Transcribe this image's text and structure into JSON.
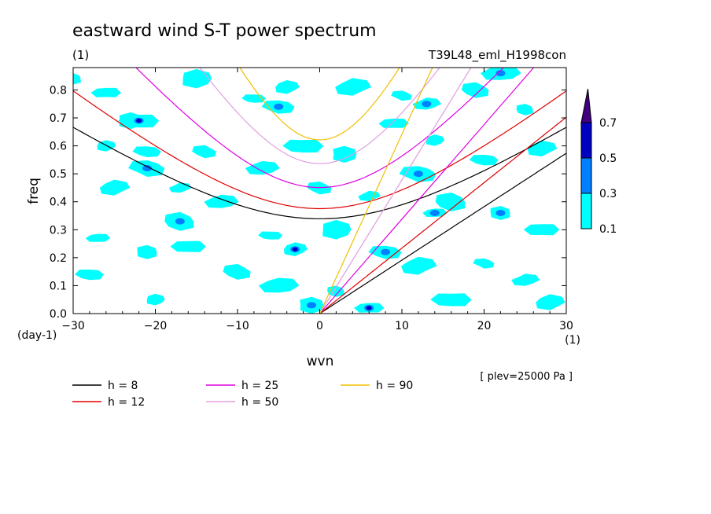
{
  "chart_data": {
    "type": "heatmap",
    "title": "eastward wind S-T power spectrum",
    "subtitle_left": "(1)",
    "subtitle_right": "T39L48_eml_H1998con",
    "xlabel": "wvn",
    "ylabel": "freq",
    "x_unit": "(1)",
    "y_unit": "(day-1)",
    "footnote": "[ plev=25000 Pa ]",
    "xlim": [
      -30,
      30
    ],
    "ylim": [
      0,
      0.88
    ],
    "xticks": [
      -30,
      -20,
      -10,
      0,
      10,
      20,
      30
    ],
    "yticks": [
      0.0,
      0.1,
      0.2,
      0.3,
      0.4,
      0.5,
      0.6,
      0.7,
      0.8
    ],
    "colorbar": {
      "levels": [
        "0.1",
        "0.3",
        "0.5",
        "0.7"
      ],
      "colors": [
        "#00ffff",
        "#0080ff",
        "#0000c0",
        "#400080"
      ]
    },
    "contour_patches": [
      {
        "x": -30,
        "y": 0.84,
        "level": 1
      },
      {
        "x": -26,
        "y": 0.79,
        "level": 1
      },
      {
        "x": -23,
        "y": 0.69,
        "level": 2
      },
      {
        "x": -22,
        "y": 0.69,
        "level": 3
      },
      {
        "x": -26,
        "y": 0.6,
        "level": 1
      },
      {
        "x": -21,
        "y": 0.58,
        "level": 1
      },
      {
        "x": -25,
        "y": 0.45,
        "level": 1
      },
      {
        "x": -21,
        "y": 0.52,
        "level": 2
      },
      {
        "x": -17,
        "y": 0.45,
        "level": 1
      },
      {
        "x": -14,
        "y": 0.58,
        "level": 1
      },
      {
        "x": -12,
        "y": 0.4,
        "level": 1
      },
      {
        "x": -17,
        "y": 0.33,
        "level": 2
      },
      {
        "x": -27,
        "y": 0.27,
        "level": 1
      },
      {
        "x": -21,
        "y": 0.22,
        "level": 1
      },
      {
        "x": -16,
        "y": 0.24,
        "level": 1
      },
      {
        "x": -15,
        "y": 0.84,
        "level": 1
      },
      {
        "x": -8,
        "y": 0.77,
        "level": 1
      },
      {
        "x": -4,
        "y": 0.81,
        "level": 1
      },
      {
        "x": -5,
        "y": 0.74,
        "level": 2
      },
      {
        "x": 4,
        "y": 0.81,
        "level": 1
      },
      {
        "x": 10,
        "y": 0.78,
        "level": 1
      },
      {
        "x": 13,
        "y": 0.75,
        "level": 2
      },
      {
        "x": 19,
        "y": 0.8,
        "level": 1
      },
      {
        "x": 22,
        "y": 0.86,
        "level": 2
      },
      {
        "x": 25,
        "y": 0.73,
        "level": 1
      },
      {
        "x": 9,
        "y": 0.68,
        "level": 1
      },
      {
        "x": 3,
        "y": 0.57,
        "level": 1
      },
      {
        "x": -2,
        "y": 0.6,
        "level": 1
      },
      {
        "x": 14,
        "y": 0.62,
        "level": 1
      },
      {
        "x": 20,
        "y": 0.55,
        "level": 1
      },
      {
        "x": 27,
        "y": 0.59,
        "level": 1
      },
      {
        "x": 12,
        "y": 0.5,
        "level": 2
      },
      {
        "x": 6,
        "y": 0.42,
        "level": 1
      },
      {
        "x": 0,
        "y": 0.45,
        "level": 1
      },
      {
        "x": -7,
        "y": 0.52,
        "level": 1
      },
      {
        "x": 16,
        "y": 0.4,
        "level": 1
      },
      {
        "x": 14,
        "y": 0.36,
        "level": 2
      },
      {
        "x": 22,
        "y": 0.36,
        "level": 2
      },
      {
        "x": 27,
        "y": 0.3,
        "level": 1
      },
      {
        "x": 2,
        "y": 0.3,
        "level": 1
      },
      {
        "x": -6,
        "y": 0.28,
        "level": 1
      },
      {
        "x": -3,
        "y": 0.23,
        "level": 3
      },
      {
        "x": 8,
        "y": 0.22,
        "level": 2
      },
      {
        "x": 12,
        "y": 0.17,
        "level": 1
      },
      {
        "x": 20,
        "y": 0.18,
        "level": 1
      },
      {
        "x": 25,
        "y": 0.12,
        "level": 1
      },
      {
        "x": -10,
        "y": 0.15,
        "level": 1
      },
      {
        "x": -5,
        "y": 0.1,
        "level": 1
      },
      {
        "x": 2,
        "y": 0.08,
        "level": 1
      },
      {
        "x": 6,
        "y": 0.02,
        "level": 3
      },
      {
        "x": -1,
        "y": 0.03,
        "level": 2
      },
      {
        "x": 16,
        "y": 0.05,
        "level": 1
      },
      {
        "x": -20,
        "y": 0.05,
        "level": 1
      },
      {
        "x": -28,
        "y": 0.14,
        "level": 1
      },
      {
        "x": 28,
        "y": 0.04,
        "level": 1
      }
    ],
    "series": [
      {
        "name": "h =  8",
        "color": "#000000"
      },
      {
        "name": "h = 12",
        "color": "#e00000"
      },
      {
        "name": "h = 25",
        "color": "#e000e0"
      },
      {
        "name": "h = 50",
        "color": "#e0a0e0"
      },
      {
        "name": "h = 90",
        "color": "#f0c000"
      }
    ],
    "equatorial_depths_m": [
      8,
      12,
      25,
      50,
      90
    ]
  }
}
